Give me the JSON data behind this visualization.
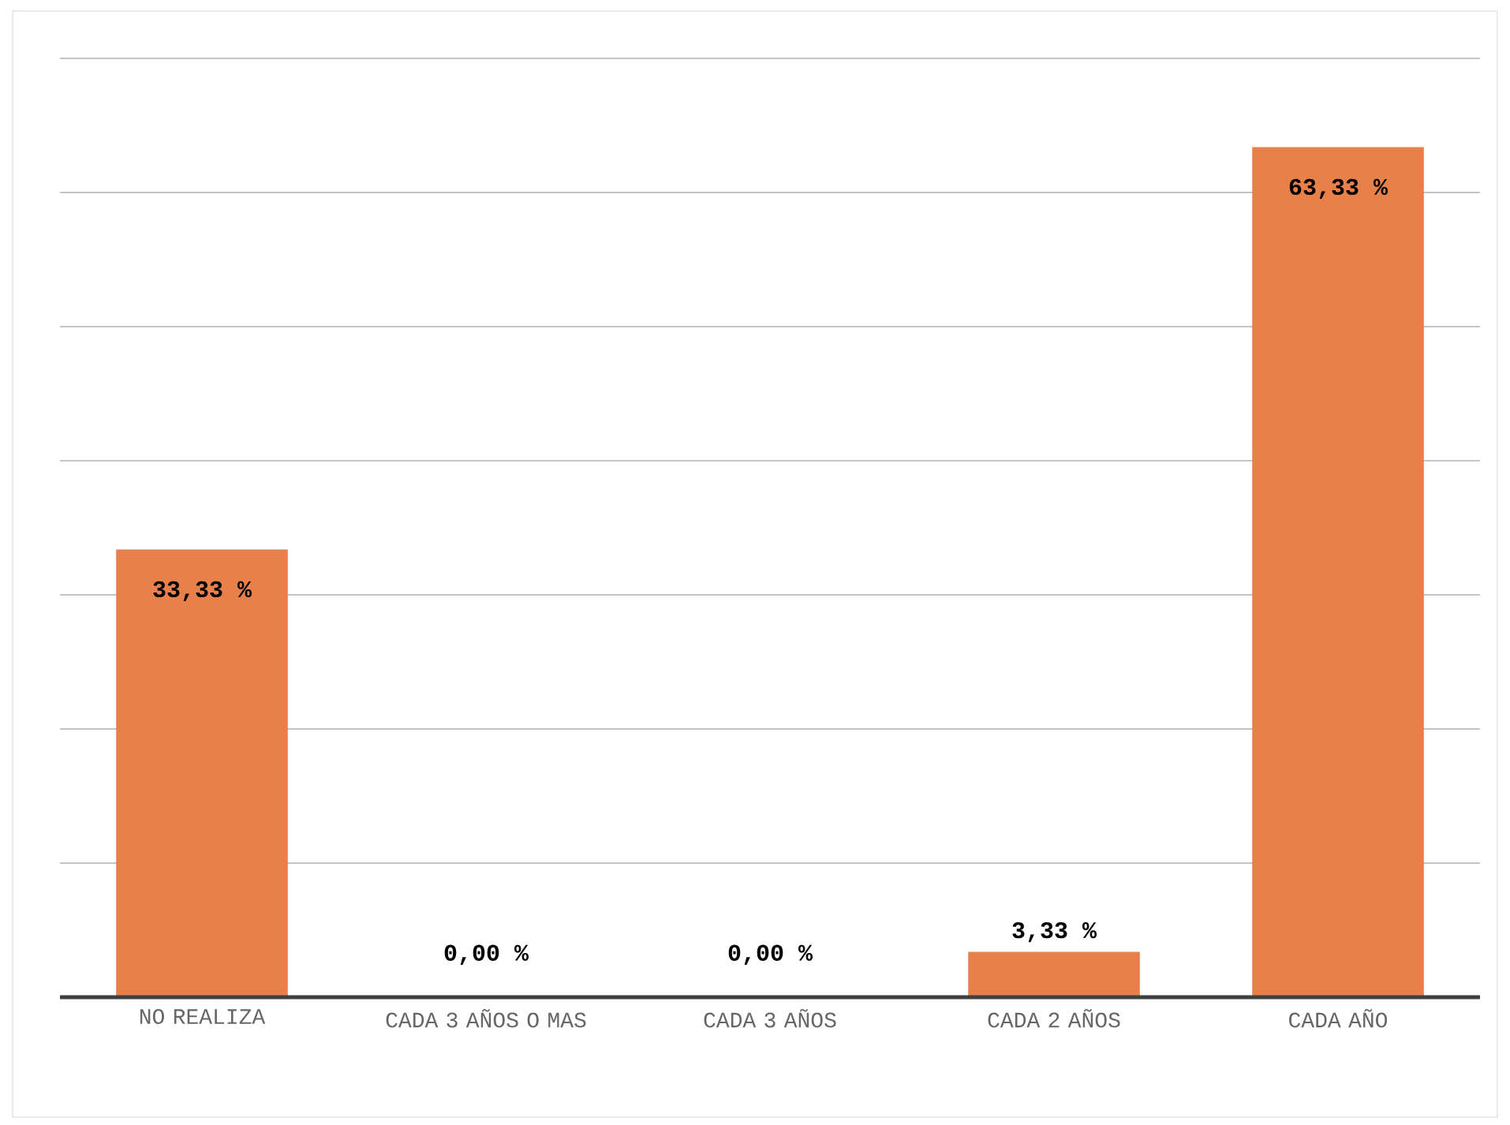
{
  "chart_data": {
    "type": "bar",
    "categories": [
      "NO REALIZA",
      "CADA 3 AÑOS O MAS",
      "CADA 3 AÑOS",
      "CADA 2 AÑOS",
      "CADA AÑO"
    ],
    "values": [
      33.33,
      0,
      0,
      3.33,
      63.33
    ],
    "value_labels": [
      "33,33 %",
      "0,00 %",
      "0,00 %",
      "3,33 %",
      "63,33 %"
    ],
    "color": "#e8804a",
    "ylim": [
      0,
      70
    ],
    "yticks": [
      {
        "value": 0,
        "label": null
      },
      {
        "value": 10,
        "label": null
      },
      {
        "value": 20,
        "label": null
      },
      {
        "value": 30,
        "label": null
      },
      {
        "value": 40,
        "label": null
      },
      {
        "value": 50,
        "label": null
      },
      {
        "value": 60,
        "label": null
      },
      {
        "value": 70,
        "label": null
      }
    ],
    "tick_labels": "x",
    "grid": "y"
  }
}
